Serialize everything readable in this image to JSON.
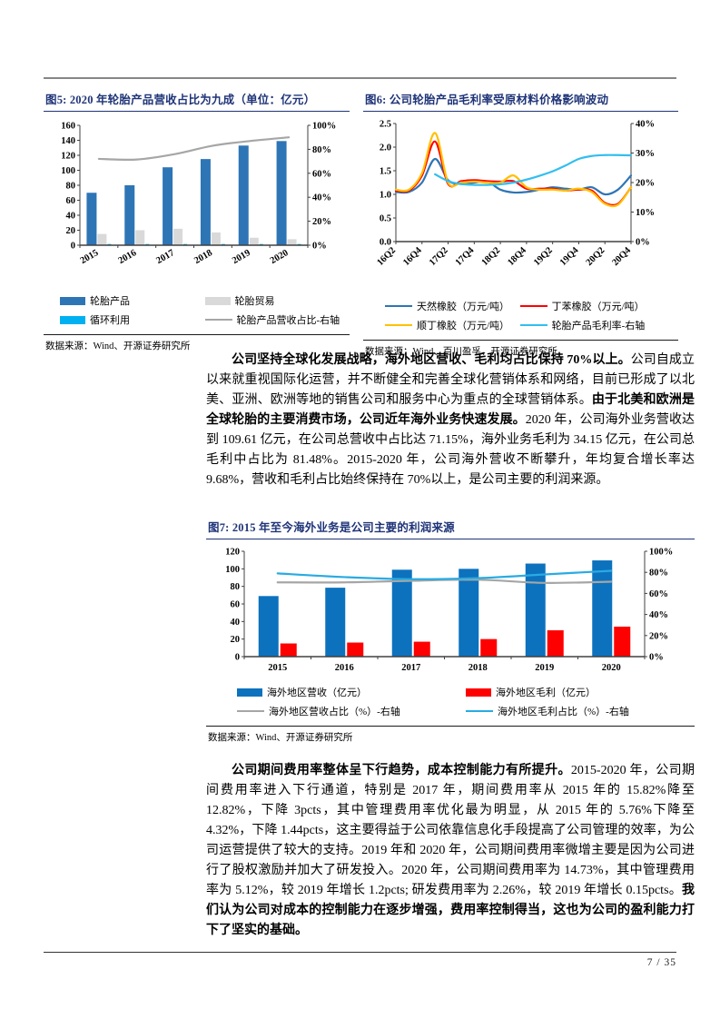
{
  "page": {
    "number": "7 / 35"
  },
  "figures": [
    {
      "title": "图5: 2020 年轮胎产品营收占比为九成（单位：亿元）",
      "source": "数据来源：Wind、开源证券研究所"
    },
    {
      "title": "图6: 公司轮胎产品毛利率受原材料价格影响波动",
      "source": "数据来源：Wind、百川盈孚、开源证券研究所"
    },
    {
      "title": "图7: 2015 年至今海外业务是公司主要的利润来源",
      "source": "数据来源：Wind、开源证券研究所"
    }
  ],
  "paragraphs": [
    {
      "segments": [
        {
          "bold": true,
          "text": "公司坚持全球化发展战略，海外地区营收、毛利均占比保持 70%以上。"
        },
        {
          "bold": false,
          "text": "公司自成立以来就重视国际化运营，并不断健全和完善全球化营销体系和网络，目前已形成了以北美、亚洲、欧洲等地的销售公司和服务中心为重点的全球营销体系。"
        },
        {
          "bold": true,
          "text": "由于北美和欧洲是全球轮胎的主要消费市场，公司近年海外业务快速发展。"
        },
        {
          "bold": false,
          "text": "2020 年，公司海外业务营收达到 109.61 亿元，在公司总营收中占比达 71.15%，海外业务毛利为 34.15 亿元，在公司总毛利中占比为 81.48%。2015-2020 年，公司海外营收不断攀升，年均复合增长率达 9.68%，营收和毛利占比始终保持在 70%以上，是公司主要的利润来源。"
        }
      ]
    },
    {
      "segments": [
        {
          "bold": true,
          "text": "公司期间费用率整体呈下行趋势，成本控制能力有所提升。"
        },
        {
          "bold": false,
          "text": "2015-2020 年，公司期间费用率进入下行通道，特别是 2017 年，期间费用率从 2015 年的 15.82%降至 12.82%，下降 3pcts，其中管理费用率优化最为明显，从 2015 年的 5.76%下降至 4.32%，下降 1.44pcts，这主要得益于公司依靠信息化手段提高了公司管理的效率，为公司运营提供了较大的支持。2019 年和 2020 年，公司期间费用率微增主要是因为公司进行了股权激励并加大了研发投入。2020 年，公司期间费用率为 14.73%，其中管理费用率为 5.12%，较 2019 年增长 1.2pcts; 研发费用率为 2.26%，较 2019 年增长 0.15pcts。"
        },
        {
          "bold": true,
          "text": "我们认为公司对成本的控制能力在逐步增强，费用率控制得当，这也为公司的盈利能力打下了坚实的基础。"
        }
      ]
    }
  ],
  "chart_data": [
    {
      "id": "fig5",
      "type": "bar",
      "title": "2020 年轮胎产品营收占比为九成（单位：亿元）",
      "categories": [
        "2015",
        "2016",
        "2017",
        "2018",
        "2019",
        "2020"
      ],
      "left_axis": {
        "min": 0,
        "max": 160,
        "step": 20
      },
      "right_axis": {
        "min": 0,
        "max": 100,
        "step": 20,
        "suffix": "%"
      },
      "bar_series": [
        {
          "name": "轮胎产品",
          "color": "#2E75B6",
          "values": [
            70,
            80,
            104,
            115,
            133,
            139
          ]
        },
        {
          "name": "轮胎贸易",
          "color": "#D9D9D9",
          "values": [
            15,
            20,
            22,
            17,
            10,
            8
          ]
        },
        {
          "name": "循环利用",
          "color": "#00B0F0",
          "values": [
            1,
            1,
            1,
            1,
            1,
            1
          ]
        }
      ],
      "line_series": [
        {
          "name": "轮胎产品营收占比-右轴",
          "color": "#A6A6A6",
          "axis": "right",
          "smooth": true,
          "values": [
            72,
            71.5,
            76,
            83,
            87,
            90
          ]
        }
      ],
      "legend": [
        {
          "label": "轮胎产品",
          "type": "bar",
          "color": "#2E75B6"
        },
        {
          "label": "轮胎贸易",
          "type": "bar",
          "color": "#D9D9D9"
        },
        {
          "label": "循环利用",
          "type": "bar",
          "color": "#00B0F0"
        },
        {
          "label": "轮胎产品营收占比-右轴",
          "type": "line",
          "color": "#A6A6A6"
        }
      ]
    },
    {
      "id": "fig6",
      "type": "line",
      "title": "公司轮胎产品毛利率受原材料价格影响波动",
      "x": [
        "16Q2",
        "16Q3",
        "16Q4",
        "17Q1",
        "17Q2",
        "17Q3",
        "17Q4",
        "18Q1",
        "18Q2",
        "18Q3",
        "18Q4",
        "19Q1",
        "19Q2",
        "19Q3",
        "19Q4",
        "20Q1",
        "20Q2",
        "20Q3",
        "20Q4"
      ],
      "left_axis": {
        "min": 0,
        "max": 2.5,
        "step": 0.5,
        "decimals": 1
      },
      "right_axis": {
        "min": 0,
        "max": 40,
        "step": 10,
        "suffix": "%"
      },
      "line_series": [
        {
          "name": "天然橡胶（万元/吨）",
          "color": "#2E75B6",
          "axis": "left",
          "smooth": true,
          "values": [
            1.05,
            1.05,
            1.25,
            1.75,
            1.3,
            1.22,
            1.25,
            1.27,
            1.1,
            1.04,
            1.05,
            1.1,
            1.15,
            1.12,
            1.1,
            1.15,
            1.0,
            1.1,
            1.4
          ]
        },
        {
          "name": "丁苯橡胶（万元/吨）",
          "color": "#FF0000",
          "axis": "left",
          "smooth": true,
          "values": [
            1.08,
            1.08,
            1.4,
            2.12,
            1.22,
            1.28,
            1.3,
            1.28,
            1.27,
            1.28,
            1.12,
            1.12,
            1.12,
            1.08,
            1.1,
            1.08,
            0.82,
            0.8,
            1.15
          ]
        },
        {
          "name": "顺丁橡胶（万元/吨）",
          "color": "#FFC000",
          "axis": "left",
          "smooth": true,
          "values": [
            1.1,
            1.1,
            1.45,
            2.3,
            1.25,
            1.25,
            1.27,
            1.25,
            1.25,
            1.4,
            1.15,
            1.1,
            1.1,
            1.08,
            1.12,
            1.05,
            0.8,
            0.78,
            1.15
          ]
        },
        {
          "name": "轮胎产品毛利率-右轴",
          "color": "#33BEEF",
          "axis": "right",
          "smooth": true,
          "values": [
            null,
            null,
            null,
            22.8,
            20.5,
            19.5,
            19.2,
            19.2,
            19.4,
            20.0,
            21.0,
            22.3,
            23.8,
            25.8,
            28.0,
            29.0,
            29.3,
            29.3,
            29.2
          ]
        }
      ],
      "legend": [
        {
          "label": "天然橡胶（万元/吨）",
          "type": "line",
          "color": "#2E75B6"
        },
        {
          "label": "丁苯橡胶（万元/吨）",
          "type": "line",
          "color": "#FF0000"
        },
        {
          "label": "顺丁橡胶（万元/吨）",
          "type": "line",
          "color": "#FFC000"
        },
        {
          "label": "轮胎产品毛利率-右轴",
          "type": "line",
          "color": "#33BEEF"
        }
      ]
    },
    {
      "id": "fig7",
      "type": "bar",
      "title": "2015 年至今海外业务是公司主要的利润来源",
      "categories": [
        "2015",
        "2016",
        "2017",
        "2018",
        "2019",
        "2020"
      ],
      "left_axis": {
        "min": 0,
        "max": 120,
        "step": 20
      },
      "right_axis": {
        "min": 0,
        "max": 100,
        "step": 20,
        "suffix": "%"
      },
      "bar_series": [
        {
          "name": "海外地区营收（亿元）",
          "color": "#0C72BE",
          "values": [
            69,
            78.5,
            99,
            100,
            106,
            109.61
          ]
        },
        {
          "name": "海外地区毛利（亿元）",
          "color": "#FF0000",
          "values": [
            15,
            16,
            17,
            20,
            30,
            34.15
          ]
        }
      ],
      "line_series": [
        {
          "name": "海外地区营收占比（%）-右轴",
          "color": "#A6A6A6",
          "axis": "right",
          "smooth": true,
          "values": [
            70.5,
            70.5,
            72,
            73,
            70,
            71.15
          ]
        },
        {
          "name": "海外地区毛利占比（%）-右轴",
          "color": "#29ABE2",
          "axis": "right",
          "smooth": true,
          "values": [
            79,
            75.5,
            73.5,
            74.5,
            78,
            81.48
          ]
        }
      ],
      "legend": [
        {
          "label": "海外地区营收（亿元）",
          "type": "bar",
          "color": "#0C72BE"
        },
        {
          "label": "海外地区毛利（亿元）",
          "type": "bar",
          "color": "#FF0000"
        },
        {
          "label": "海外地区营收占比（%）-右轴",
          "type": "line",
          "color": "#A6A6A6"
        },
        {
          "label": "海外地区毛利占比（%）-右轴",
          "type": "line",
          "color": "#29ABE2"
        }
      ]
    }
  ]
}
